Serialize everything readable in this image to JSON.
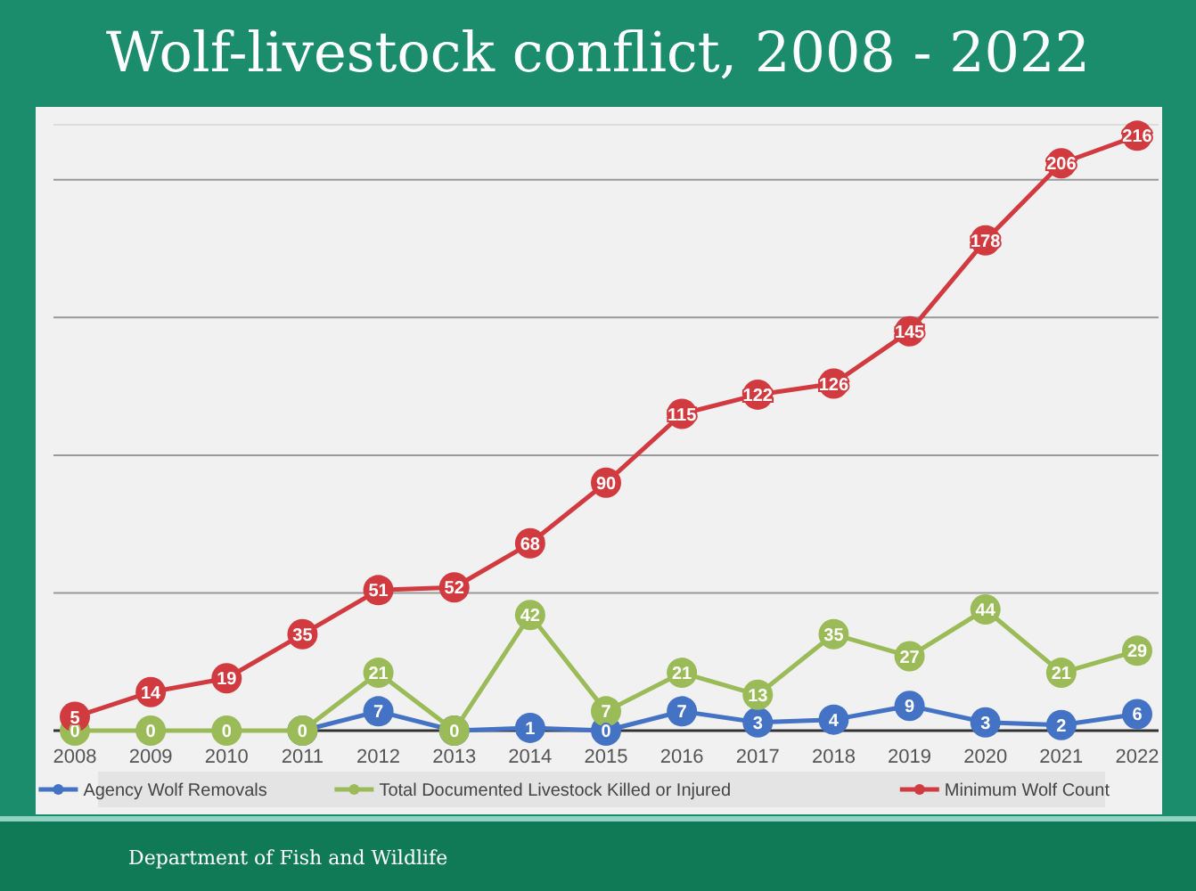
{
  "chart_data": {
    "type": "line",
    "title": "Wolf-livestock conflict, 2008 - 2022",
    "categories": [
      "2008",
      "2009",
      "2010",
      "2011",
      "2012",
      "2013",
      "2014",
      "2015",
      "2016",
      "2017",
      "2018",
      "2019",
      "2020",
      "2021",
      "2022"
    ],
    "series": [
      {
        "name": "Agency Wolf Removals",
        "color": "#4472c4",
        "values": [
          null,
          null,
          null,
          0,
          7,
          0,
          1,
          0,
          7,
          3,
          4,
          9,
          3,
          2,
          6
        ],
        "value_labels": [
          null,
          null,
          null,
          null,
          "7",
          null,
          "1",
          "0",
          "7",
          "3",
          "4",
          "9",
          "3",
          "2",
          "6"
        ]
      },
      {
        "name": "Total Documented Livestock Killed or Injured",
        "color": "#9bbb59",
        "values": [
          0,
          0,
          0,
          0,
          21,
          0,
          42,
          7,
          21,
          13,
          35,
          27,
          44,
          21,
          29
        ]
      },
      {
        "name": "Minimum Wolf Count",
        "color": "#d13b40",
        "values": [
          5,
          14,
          19,
          35,
          51,
          52,
          68,
          90,
          115,
          122,
          126,
          145,
          178,
          206,
          216
        ]
      }
    ],
    "ylim": [
      0,
      220
    ],
    "yticks": [
      {
        "value": 0,
        "label": null
      },
      {
        "value": 50,
        "label": null
      },
      {
        "value": 100,
        "label": null
      },
      {
        "value": 150,
        "label": null
      },
      {
        "value": 200,
        "label": null
      }
    ],
    "tick_labels": "x",
    "grid": "y",
    "legend": "bottom",
    "marker": "circle",
    "line_style": "solid",
    "data_labels": true,
    "annotations": [
      "Department of Fish and Wildlife"
    ]
  }
}
